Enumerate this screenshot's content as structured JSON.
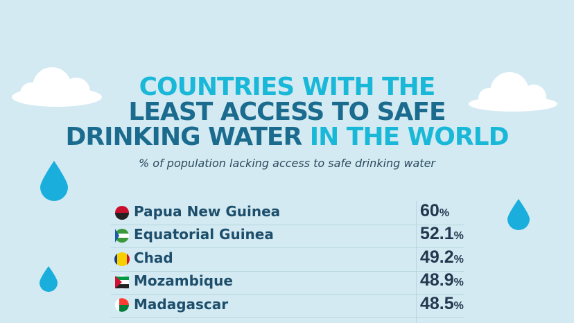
{
  "title": {
    "line1": "COUNTRIES WITH THE",
    "line2": "LEAST ACCESS TO SAFE",
    "line3_a": "DRINKING WATER",
    "line3_b": "IN THE WORLD"
  },
  "subtitle": "% of population lacking access to safe drinking water",
  "table": {
    "rows": [
      {
        "country": "Papua New Guinea",
        "value": "60",
        "unit": "%"
      },
      {
        "country": "Equatorial Guinea",
        "value": "52.1",
        "unit": "%"
      },
      {
        "country": "Chad",
        "value": "49.2",
        "unit": "%"
      },
      {
        "country": "Mozambique",
        "value": "48.9",
        "unit": "%"
      },
      {
        "country": "Madagascar",
        "value": "48.5",
        "unit": "%"
      }
    ]
  }
}
